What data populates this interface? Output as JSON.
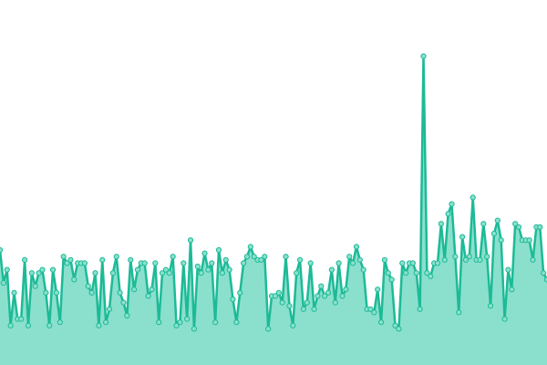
{
  "chart_data": {
    "type": "area",
    "color": "#1dba97",
    "fill": "#8ae0cd",
    "ylim": [
      0,
      100
    ],
    "values": [
      35,
      25,
      29,
      12,
      22,
      14,
      14,
      32,
      12,
      28,
      24,
      28,
      29,
      22,
      12,
      29,
      22,
      13,
      33,
      31,
      32,
      26,
      31,
      31,
      31,
      24,
      22,
      28,
      12,
      32,
      13,
      17,
      28,
      33,
      22,
      19,
      15,
      32,
      23,
      29,
      31,
      31,
      21,
      23,
      31,
      13,
      28,
      29,
      28,
      33,
      12,
      13,
      31,
      14,
      38,
      11,
      30,
      28,
      34,
      29,
      31,
      13,
      35,
      28,
      32,
      29,
      20,
      13,
      22,
      31,
      33,
      36,
      33,
      32,
      32,
      33,
      11,
      21,
      21,
      22,
      19,
      33,
      18,
      12,
      28,
      32,
      17,
      19,
      31,
      17,
      21,
      24,
      21,
      22,
      29,
      19,
      31,
      21,
      23,
      33,
      31,
      36,
      32,
      29,
      17,
      17,
      16,
      23,
      13,
      32,
      28,
      26,
      12,
      11,
      31,
      28,
      31,
      31,
      28,
      17,
      94,
      28,
      27,
      31,
      31,
      43,
      32,
      46,
      49,
      33,
      16,
      39,
      32,
      33,
      51,
      32,
      32,
      43,
      33,
      18,
      40,
      44,
      38,
      14,
      29,
      23,
      43,
      42,
      38,
      38,
      38,
      32,
      42,
      42,
      28,
      26
    ]
  }
}
